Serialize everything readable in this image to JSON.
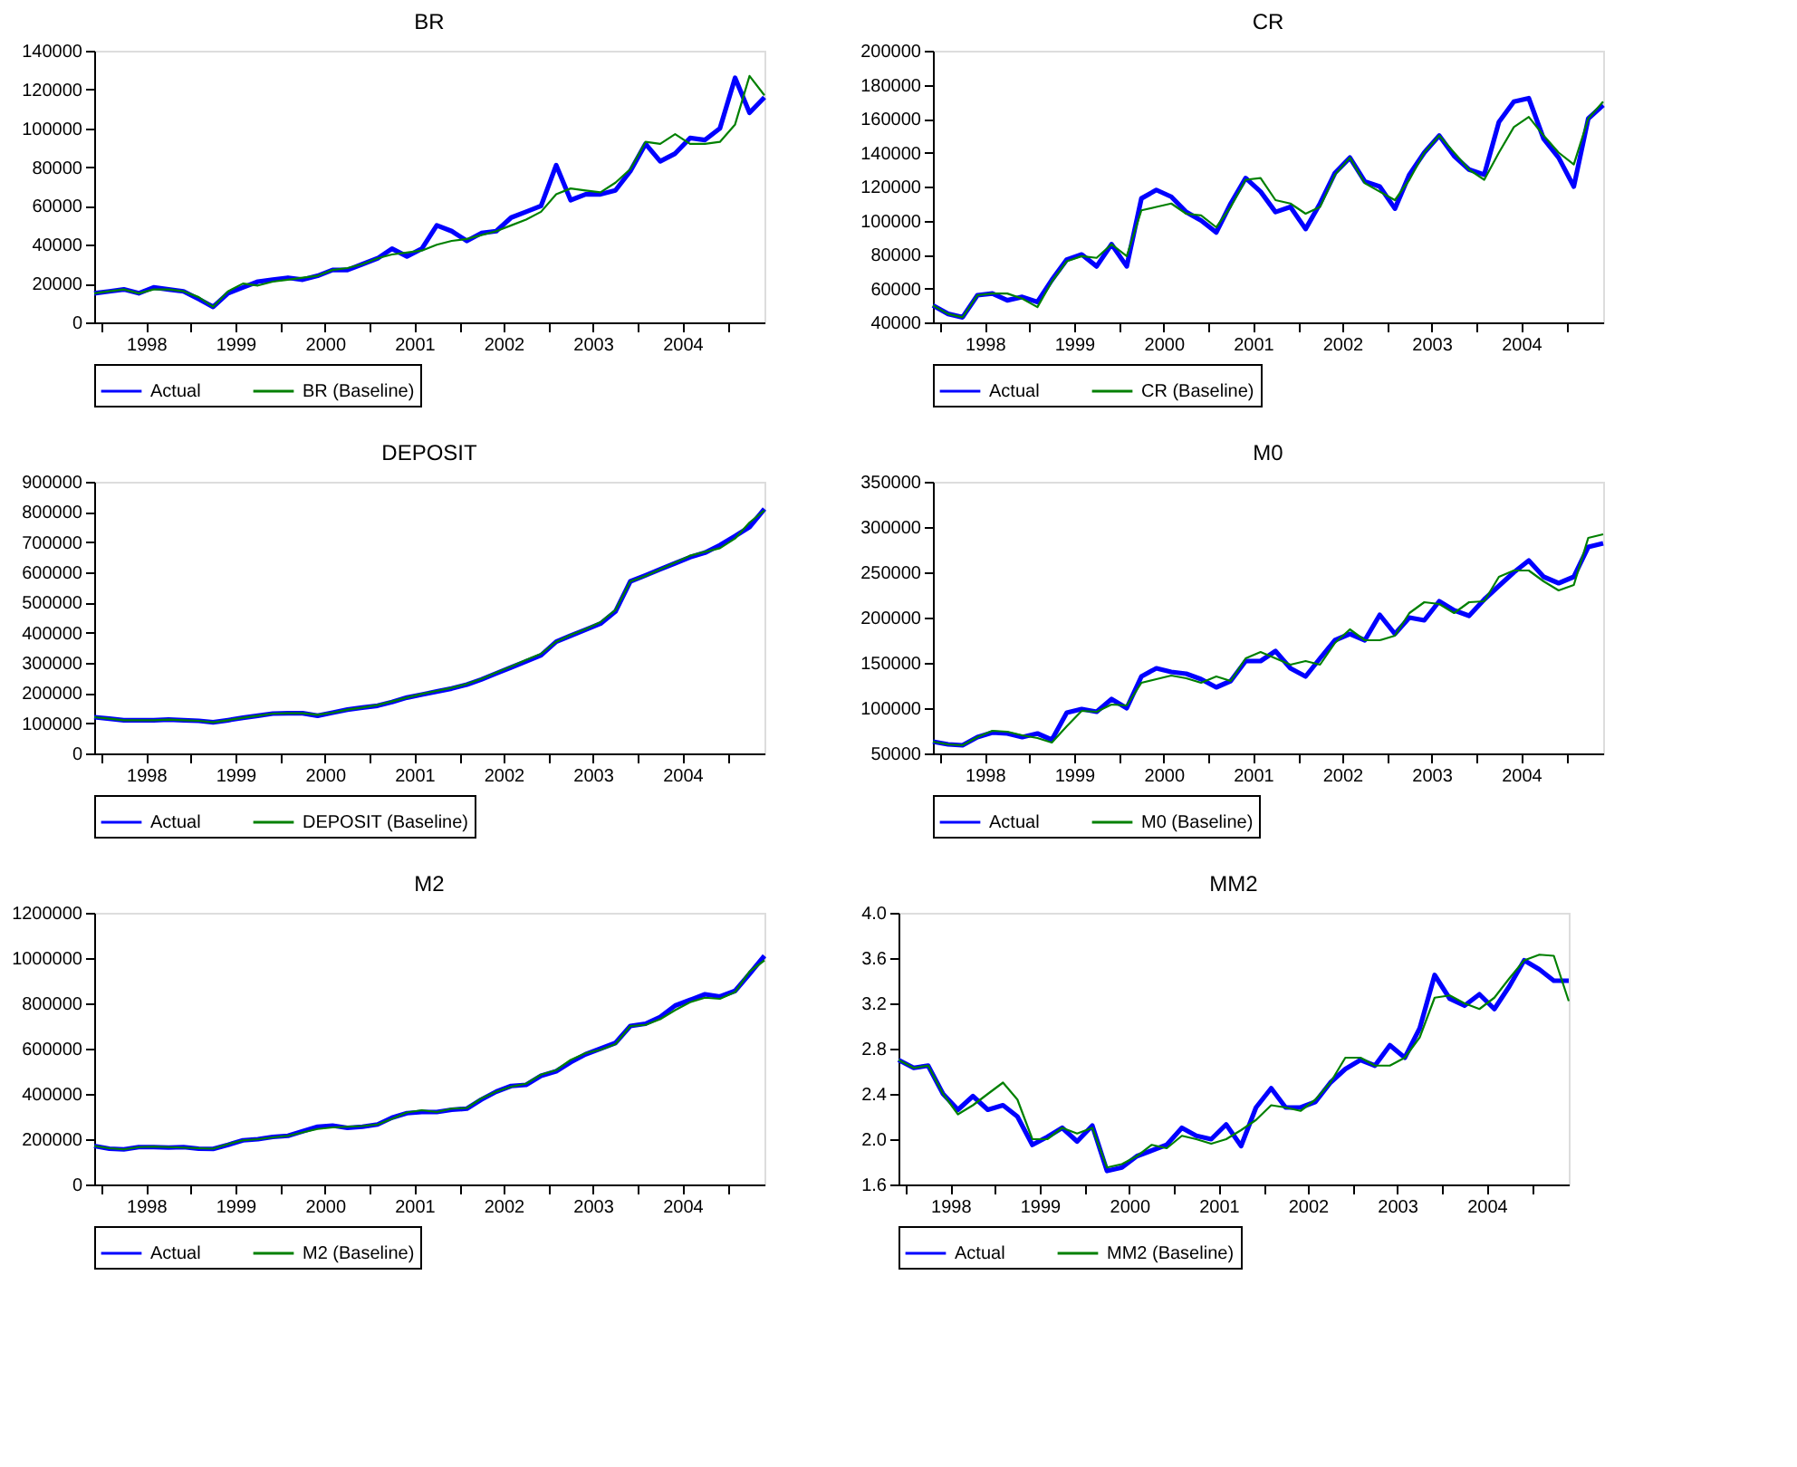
{
  "chart_data": [
    {
      "type": "line",
      "title": "BR",
      "legend": "bottom",
      "grid": false,
      "x": [
        "1997-12",
        "1998-02",
        "1998-04",
        "1998-06",
        "1998-08",
        "1998-10",
        "1998-12",
        "1999-02",
        "1999-04",
        "1999-06",
        "1999-08",
        "1999-10",
        "1999-12",
        "2000-02",
        "2000-04",
        "2000-06",
        "2000-08",
        "2000-10",
        "2000-12",
        "2001-02",
        "2001-04",
        "2001-06",
        "2001-08",
        "2001-10",
        "2001-12",
        "2002-02",
        "2002-04",
        "2002-06",
        "2002-08",
        "2002-10",
        "2002-12",
        "2003-02",
        "2003-04",
        "2003-06",
        "2003-08",
        "2003-10",
        "2003-12",
        "2004-02",
        "2004-04",
        "2004-06",
        "2004-08",
        "2004-10",
        "2004-12",
        "2005-02",
        "2005-04",
        "2005-06"
      ],
      "xlim": [
        "1997-12",
        "2005-06"
      ],
      "xticks": [
        {
          "value": "1998-01",
          "label": null
        },
        {
          "value": "1998-07",
          "label": "1998"
        },
        {
          "value": "1999-01",
          "label": null
        },
        {
          "value": "1999-07",
          "label": "1999"
        },
        {
          "value": "2000-01",
          "label": null
        },
        {
          "value": "2000-07",
          "label": "2000"
        },
        {
          "value": "2001-01",
          "label": null
        },
        {
          "value": "2001-07",
          "label": "2001"
        },
        {
          "value": "2002-01",
          "label": null
        },
        {
          "value": "2002-07",
          "label": "2002"
        },
        {
          "value": "2003-01",
          "label": null
        },
        {
          "value": "2003-07",
          "label": "2003"
        },
        {
          "value": "2004-01",
          "label": null
        },
        {
          "value": "2004-07",
          "label": "2004"
        },
        {
          "value": "2005-01",
          "label": null
        }
      ],
      "ylim": [
        0,
        140000
      ],
      "yticks": [
        0,
        20000,
        40000,
        60000,
        80000,
        100000,
        120000,
        140000
      ],
      "series": [
        {
          "name": "Actual",
          "color": "#0000ff",
          "values": [
            15000,
            16000,
            17000,
            15000,
            18000,
            17000,
            16000,
            12000,
            8000,
            15000,
            18000,
            21000,
            22000,
            23000,
            22000,
            24000,
            27000,
            27000,
            30000,
            33000,
            38000,
            34000,
            38000,
            50000,
            47000,
            42000,
            46000,
            47000,
            54000,
            57000,
            60000,
            81000,
            63000,
            66000,
            66000,
            68000,
            78000,
            92000,
            83000,
            87000,
            95000,
            94000,
            100000,
            126000,
            108000,
            116000
          ]
        },
        {
          "name": "BR (Baseline)",
          "color": "#008000",
          "values": [
            15000,
            16000,
            17000,
            15000,
            17000,
            17000,
            16000,
            13000,
            8000,
            16000,
            20000,
            19000,
            21000,
            22000,
            23000,
            24000,
            27000,
            28000,
            30000,
            33000,
            35000,
            36000,
            37000,
            40000,
            42000,
            43000,
            45000,
            47000,
            50000,
            53000,
            57000,
            66000,
            69000,
            68000,
            67000,
            72000,
            79000,
            93000,
            92000,
            97000,
            92000,
            92000,
            93000,
            102000,
            127000,
            117000
          ]
        }
      ]
    },
    {
      "type": "line",
      "title": "CR",
      "legend": "bottom",
      "grid": false,
      "x": [
        "1997-12",
        "1998-02",
        "1998-04",
        "1998-06",
        "1998-08",
        "1998-10",
        "1998-12",
        "1999-02",
        "1999-04",
        "1999-06",
        "1999-08",
        "1999-10",
        "1999-12",
        "2000-02",
        "2000-04",
        "2000-06",
        "2000-08",
        "2000-10",
        "2000-12",
        "2001-02",
        "2001-04",
        "2001-06",
        "2001-08",
        "2001-10",
        "2001-12",
        "2002-02",
        "2002-04",
        "2002-06",
        "2002-08",
        "2002-10",
        "2002-12",
        "2003-02",
        "2003-04",
        "2003-06",
        "2003-08",
        "2003-10",
        "2003-12",
        "2004-02",
        "2004-04",
        "2004-06",
        "2004-08",
        "2004-10",
        "2004-12",
        "2005-02",
        "2005-04",
        "2005-06"
      ],
      "xlim": [
        "1997-12",
        "2005-06"
      ],
      "xticks": [
        {
          "value": "1998-01",
          "label": null
        },
        {
          "value": "1998-07",
          "label": "1998"
        },
        {
          "value": "1999-01",
          "label": null
        },
        {
          "value": "1999-07",
          "label": "1999"
        },
        {
          "value": "2000-01",
          "label": null
        },
        {
          "value": "2000-07",
          "label": "2000"
        },
        {
          "value": "2001-01",
          "label": null
        },
        {
          "value": "2001-07",
          "label": "2001"
        },
        {
          "value": "2002-01",
          "label": null
        },
        {
          "value": "2002-07",
          "label": "2002"
        },
        {
          "value": "2003-01",
          "label": null
        },
        {
          "value": "2003-07",
          "label": "2003"
        },
        {
          "value": "2004-01",
          "label": null
        },
        {
          "value": "2004-07",
          "label": "2004"
        },
        {
          "value": "2005-01",
          "label": null
        }
      ],
      "ylim": [
        40000,
        200000
      ],
      "yticks": [
        40000,
        60000,
        80000,
        100000,
        120000,
        140000,
        160000,
        180000,
        200000
      ],
      "series": [
        {
          "name": "Actual",
          "color": "#0000ff",
          "values": [
            50000,
            45000,
            43000,
            56000,
            57000,
            53000,
            55000,
            52000,
            65000,
            77000,
            80000,
            73000,
            86000,
            73000,
            113000,
            118000,
            114000,
            105000,
            100000,
            93000,
            110000,
            125000,
            117000,
            105000,
            108000,
            95000,
            110000,
            128000,
            137000,
            123000,
            120000,
            107000,
            127000,
            140000,
            150000,
            138000,
            130000,
            127000,
            158000,
            170000,
            172000,
            148000,
            137000,
            120000,
            160000,
            168000
          ]
        },
        {
          "name": "CR (Baseline)",
          "color": "#008000",
          "values": [
            50000,
            45000,
            43000,
            56000,
            57000,
            57000,
            54000,
            49000,
            64000,
            76000,
            79000,
            78000,
            86000,
            79000,
            106000,
            108000,
            110000,
            104000,
            103000,
            96000,
            108000,
            124000,
            125000,
            112000,
            110000,
            104000,
            108000,
            127000,
            137000,
            122000,
            117000,
            112000,
            124000,
            140000,
            150000,
            140000,
            130000,
            124000,
            140000,
            155000,
            161000,
            150000,
            140000,
            133000,
            160000,
            170000
          ]
        }
      ]
    },
    {
      "type": "line",
      "title": "DEPOSIT",
      "legend": "bottom",
      "grid": false,
      "x": [
        "1997-12",
        "1998-02",
        "1998-04",
        "1998-06",
        "1998-08",
        "1998-10",
        "1998-12",
        "1999-02",
        "1999-04",
        "1999-06",
        "1999-08",
        "1999-10",
        "1999-12",
        "2000-02",
        "2000-04",
        "2000-06",
        "2000-08",
        "2000-10",
        "2000-12",
        "2001-02",
        "2001-04",
        "2001-06",
        "2001-08",
        "2001-10",
        "2001-12",
        "2002-02",
        "2002-04",
        "2002-06",
        "2002-08",
        "2002-10",
        "2002-12",
        "2003-02",
        "2003-04",
        "2003-06",
        "2003-08",
        "2003-10",
        "2003-12",
        "2004-02",
        "2004-04",
        "2004-06",
        "2004-08",
        "2004-10",
        "2004-12",
        "2005-02",
        "2005-04",
        "2005-06"
      ],
      "xlim": [
        "1997-12",
        "2005-06"
      ],
      "xticks": [
        {
          "value": "1998-01",
          "label": null
        },
        {
          "value": "1998-07",
          "label": "1998"
        },
        {
          "value": "1999-01",
          "label": null
        },
        {
          "value": "1999-07",
          "label": "1999"
        },
        {
          "value": "2000-01",
          "label": null
        },
        {
          "value": "2000-07",
          "label": "2000"
        },
        {
          "value": "2001-01",
          "label": null
        },
        {
          "value": "2001-07",
          "label": "2001"
        },
        {
          "value": "2002-01",
          "label": null
        },
        {
          "value": "2002-07",
          "label": "2002"
        },
        {
          "value": "2003-01",
          "label": null
        },
        {
          "value": "2003-07",
          "label": "2003"
        },
        {
          "value": "2004-01",
          "label": null
        },
        {
          "value": "2004-07",
          "label": "2004"
        },
        {
          "value": "2005-01",
          "label": null
        }
      ],
      "ylim": [
        0,
        900000
      ],
      "yticks": [
        0,
        100000,
        200000,
        300000,
        400000,
        500000,
        600000,
        700000,
        800000,
        900000
      ],
      "series": [
        {
          "name": "Actual",
          "color": "#0000ff",
          "values": [
            120000,
            115000,
            110000,
            110000,
            110000,
            112000,
            110000,
            108000,
            103000,
            110000,
            118000,
            125000,
            132000,
            133000,
            133000,
            125000,
            135000,
            145000,
            152000,
            158000,
            170000,
            185000,
            195000,
            205000,
            215000,
            228000,
            245000,
            265000,
            285000,
            305000,
            325000,
            370000,
            390000,
            410000,
            430000,
            470000,
            570000,
            590000,
            610000,
            630000,
            650000,
            665000,
            690000,
            720000,
            750000,
            810000
          ]
        },
        {
          "name": "DEPOSIT (Baseline)",
          "color": "#008000",
          "values": [
            120000,
            115000,
            110000,
            110000,
            110000,
            112000,
            110000,
            108000,
            103000,
            110000,
            118000,
            125000,
            132000,
            133000,
            133000,
            128000,
            135000,
            145000,
            152000,
            160000,
            172000,
            185000,
            197000,
            207000,
            217000,
            230000,
            247000,
            268000,
            288000,
            310000,
            330000,
            370000,
            392000,
            412000,
            435000,
            475000,
            570000,
            588000,
            610000,
            632000,
            655000,
            668000,
            680000,
            712000,
            765000,
            805000
          ]
        }
      ]
    },
    {
      "type": "line",
      "title": "M0",
      "legend": "bottom",
      "grid": false,
      "x": [
        "1997-12",
        "1998-02",
        "1998-04",
        "1998-06",
        "1998-08",
        "1998-10",
        "1998-12",
        "1999-02",
        "1999-04",
        "1999-06",
        "1999-08",
        "1999-10",
        "1999-12",
        "2000-02",
        "2000-04",
        "2000-06",
        "2000-08",
        "2000-10",
        "2000-12",
        "2001-02",
        "2001-04",
        "2001-06",
        "2001-08",
        "2001-10",
        "2001-12",
        "2002-02",
        "2002-04",
        "2002-06",
        "2002-08",
        "2002-10",
        "2002-12",
        "2003-02",
        "2003-04",
        "2003-06",
        "2003-08",
        "2003-10",
        "2003-12",
        "2004-02",
        "2004-04",
        "2004-06",
        "2004-08",
        "2004-10",
        "2004-12",
        "2005-02",
        "2005-04",
        "2005-06"
      ],
      "xlim": [
        "1997-12",
        "2005-06"
      ],
      "xticks": [
        {
          "value": "1998-01",
          "label": null
        },
        {
          "value": "1998-07",
          "label": "1998"
        },
        {
          "value": "1999-01",
          "label": null
        },
        {
          "value": "1999-07",
          "label": "1999"
        },
        {
          "value": "2000-01",
          "label": null
        },
        {
          "value": "2000-07",
          "label": "2000"
        },
        {
          "value": "2001-01",
          "label": null
        },
        {
          "value": "2001-07",
          "label": "2001"
        },
        {
          "value": "2002-01",
          "label": null
        },
        {
          "value": "2002-07",
          "label": "2002"
        },
        {
          "value": "2003-01",
          "label": null
        },
        {
          "value": "2003-07",
          "label": "2003"
        },
        {
          "value": "2004-01",
          "label": null
        },
        {
          "value": "2004-07",
          "label": "2004"
        },
        {
          "value": "2005-01",
          "label": null
        }
      ],
      "ylim": [
        50000,
        350000
      ],
      "yticks": [
        50000,
        100000,
        150000,
        200000,
        250000,
        300000,
        350000
      ],
      "series": [
        {
          "name": "Actual",
          "color": "#0000ff",
          "values": [
            63000,
            60000,
            59000,
            68000,
            73000,
            72000,
            68000,
            72000,
            65000,
            95000,
            99000,
            96000,
            110000,
            100000,
            135000,
            144000,
            140000,
            138000,
            132000,
            123000,
            130000,
            152000,
            152000,
            163000,
            144000,
            135000,
            155000,
            175000,
            182000,
            175000,
            203000,
            182000,
            200000,
            197000,
            218000,
            208000,
            202000,
            220000,
            235000,
            250000,
            263000,
            245000,
            238000,
            245000,
            278000,
            282000
          ]
        },
        {
          "name": "M0 (Baseline)",
          "color": "#008000",
          "values": [
            63000,
            60000,
            59000,
            68000,
            75000,
            74000,
            70000,
            67000,
            62000,
            80000,
            97000,
            96000,
            104000,
            103000,
            128000,
            132000,
            136000,
            133000,
            128000,
            135000,
            130000,
            155000,
            162000,
            155000,
            148000,
            152000,
            148000,
            172000,
            187000,
            175000,
            175000,
            180000,
            205000,
            217000,
            215000,
            205000,
            217000,
            218000,
            245000,
            252000,
            252000,
            240000,
            230000,
            236000,
            288000,
            292000
          ]
        }
      ]
    },
    {
      "type": "line",
      "title": "M2",
      "legend": "bottom",
      "grid": false,
      "x": [
        "1997-12",
        "1998-02",
        "1998-04",
        "1998-06",
        "1998-08",
        "1998-10",
        "1998-12",
        "1999-02",
        "1999-04",
        "1999-06",
        "1999-08",
        "1999-10",
        "1999-12",
        "2000-02",
        "2000-04",
        "2000-06",
        "2000-08",
        "2000-10",
        "2000-12",
        "2001-02",
        "2001-04",
        "2001-06",
        "2001-08",
        "2001-10",
        "2001-12",
        "2002-02",
        "2002-04",
        "2002-06",
        "2002-08",
        "2002-10",
        "2002-12",
        "2003-02",
        "2003-04",
        "2003-06",
        "2003-08",
        "2003-10",
        "2003-12",
        "2004-02",
        "2004-04",
        "2004-06",
        "2004-08",
        "2004-10",
        "2004-12",
        "2005-02",
        "2005-04",
        "2005-06"
      ],
      "xlim": [
        "1997-12",
        "2005-06"
      ],
      "xticks": [
        {
          "value": "1998-01",
          "label": null
        },
        {
          "value": "1998-07",
          "label": "1998"
        },
        {
          "value": "1999-01",
          "label": null
        },
        {
          "value": "1999-07",
          "label": "1999"
        },
        {
          "value": "2000-01",
          "label": null
        },
        {
          "value": "2000-07",
          "label": "2000"
        },
        {
          "value": "2001-01",
          "label": null
        },
        {
          "value": "2001-07",
          "label": "2001"
        },
        {
          "value": "2002-01",
          "label": null
        },
        {
          "value": "2002-07",
          "label": "2002"
        },
        {
          "value": "2003-01",
          "label": null
        },
        {
          "value": "2003-07",
          "label": "2003"
        },
        {
          "value": "2004-01",
          "label": null
        },
        {
          "value": "2004-07",
          "label": "2004"
        },
        {
          "value": "2005-01",
          "label": null
        }
      ],
      "ylim": [
        0,
        1200000
      ],
      "yticks": [
        0,
        200000,
        400000,
        600000,
        800000,
        1000000,
        1200000
      ],
      "series": [
        {
          "name": "Actual",
          "color": "#0000ff",
          "values": [
            170000,
            158000,
            155000,
            165000,
            165000,
            163000,
            165000,
            158000,
            157000,
            175000,
            195000,
            200000,
            210000,
            215000,
            235000,
            255000,
            260000,
            250000,
            255000,
            265000,
            295000,
            315000,
            320000,
            320000,
            330000,
            335000,
            375000,
            410000,
            435000,
            440000,
            480000,
            500000,
            540000,
            575000,
            600000,
            625000,
            700000,
            710000,
            740000,
            790000,
            815000,
            840000,
            830000,
            855000,
            930000,
            1010000
          ]
        },
        {
          "name": "M2 (Baseline)",
          "color": "#008000",
          "values": [
            170000,
            160000,
            155000,
            165000,
            167000,
            165000,
            163000,
            160000,
            158000,
            178000,
            195000,
            200000,
            208000,
            215000,
            230000,
            245000,
            252000,
            255000,
            258000,
            265000,
            290000,
            318000,
            328000,
            320000,
            335000,
            338000,
            380000,
            410000,
            432000,
            445000,
            485000,
            505000,
            550000,
            580000,
            595000,
            620000,
            700000,
            705000,
            730000,
            770000,
            805000,
            825000,
            820000,
            850000,
            940000,
            990000
          ]
        }
      ]
    },
    {
      "type": "line",
      "title": "MM2",
      "legend": "bottom",
      "grid": false,
      "x": [
        "1997-12",
        "1998-02",
        "1998-04",
        "1998-06",
        "1998-08",
        "1998-10",
        "1998-12",
        "1999-02",
        "1999-04",
        "1999-06",
        "1999-08",
        "1999-10",
        "1999-12",
        "2000-02",
        "2000-04",
        "2000-06",
        "2000-08",
        "2000-10",
        "2000-12",
        "2001-02",
        "2001-04",
        "2001-06",
        "2001-08",
        "2001-10",
        "2001-12",
        "2002-02",
        "2002-04",
        "2002-06",
        "2002-08",
        "2002-10",
        "2002-12",
        "2003-02",
        "2003-04",
        "2003-06",
        "2003-08",
        "2003-10",
        "2003-12",
        "2004-02",
        "2004-04",
        "2004-06",
        "2004-08",
        "2004-10",
        "2004-12",
        "2005-02",
        "2005-04",
        "2005-06"
      ],
      "xlim": [
        "1997-12",
        "2005-06"
      ],
      "xticks": [
        {
          "value": "1998-01",
          "label": null
        },
        {
          "value": "1998-07",
          "label": "1998"
        },
        {
          "value": "1999-01",
          "label": null
        },
        {
          "value": "1999-07",
          "label": "1999"
        },
        {
          "value": "2000-01",
          "label": null
        },
        {
          "value": "2000-07",
          "label": "2000"
        },
        {
          "value": "2001-01",
          "label": null
        },
        {
          "value": "2001-07",
          "label": "2001"
        },
        {
          "value": "2002-01",
          "label": null
        },
        {
          "value": "2002-07",
          "label": "2002"
        },
        {
          "value": "2003-01",
          "label": null
        },
        {
          "value": "2003-07",
          "label": "2003"
        },
        {
          "value": "2004-01",
          "label": null
        },
        {
          "value": "2004-07",
          "label": "2004"
        },
        {
          "value": "2005-01",
          "label": null
        }
      ],
      "ylim": [
        1.6,
        4.0
      ],
      "yticks": [
        1.6,
        {
          "value": 2,
          "label": "2.0"
        },
        2.4,
        2.8,
        3.2,
        3.6,
        {
          "value": 4,
          "label": "4.0"
        }
      ],
      "series": [
        {
          "name": "Actual",
          "color": "#0000ff",
          "values": [
            2.7,
            2.63,
            2.65,
            2.4,
            2.26,
            2.38,
            2.26,
            2.3,
            2.2,
            1.95,
            2.02,
            2.1,
            1.98,
            2.12,
            1.72,
            1.75,
            1.85,
            1.9,
            1.95,
            2.1,
            2.03,
            2.0,
            2.13,
            1.94,
            2.28,
            2.45,
            2.28,
            2.28,
            2.33,
            2.5,
            2.62,
            2.7,
            2.65,
            2.83,
            2.72,
            2.98,
            3.45,
            3.24,
            3.18,
            3.28,
            3.15,
            3.35,
            3.58,
            3.5,
            3.4,
            3.4
          ]
        },
        {
          "name": "MM2 (Baseline)",
          "color": "#008000",
          "values": [
            2.7,
            2.63,
            2.65,
            2.4,
            2.22,
            2.3,
            2.4,
            2.5,
            2.35,
            2.0,
            2.0,
            2.1,
            2.05,
            2.1,
            1.75,
            1.78,
            1.85,
            1.95,
            1.92,
            2.03,
            2.0,
            1.96,
            2.0,
            2.08,
            2.17,
            2.3,
            2.28,
            2.25,
            2.35,
            2.5,
            2.72,
            2.72,
            2.65,
            2.65,
            2.72,
            2.9,
            3.25,
            3.27,
            3.2,
            3.15,
            3.25,
            3.42,
            3.58,
            3.63,
            3.62,
            3.22
          ]
        }
      ]
    }
  ]
}
